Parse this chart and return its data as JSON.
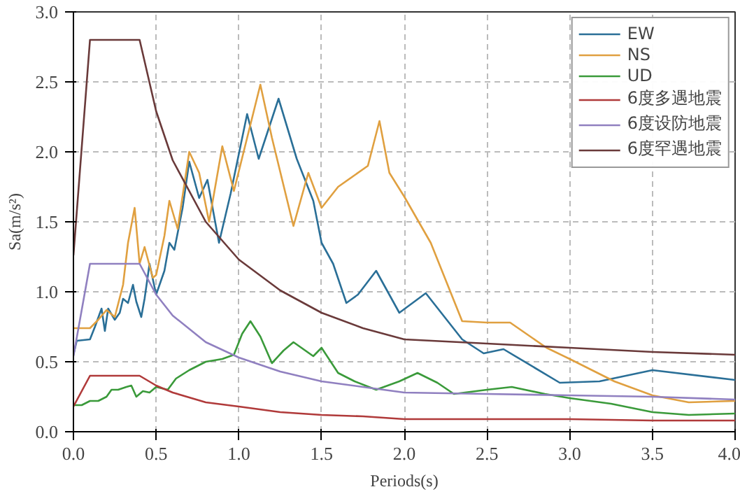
{
  "chart_data": {
    "type": "line",
    "xlabel": "Periods(s)",
    "ylabel": "Sa(m/s²)",
    "xlim": [
      0,
      4
    ],
    "ylim": [
      0,
      3
    ],
    "xticks": [
      {
        "value": 0,
        "label": "0.0"
      },
      {
        "value": 0.5,
        "label": "0.5"
      },
      {
        "value": 1,
        "label": "1.0"
      },
      {
        "value": 1.5,
        "label": "1.5"
      },
      {
        "value": 2,
        "label": "2.0"
      },
      {
        "value": 2.5,
        "label": "2.5"
      },
      {
        "value": 3,
        "label": "3.0"
      },
      {
        "value": 3.5,
        "label": "3.5"
      },
      {
        "value": 4,
        "label": "4.0"
      }
    ],
    "yticks": [
      {
        "value": 0,
        "label": "0.0"
      },
      {
        "value": 0.5,
        "label": "0.5"
      },
      {
        "value": 1,
        "label": "1.0"
      },
      {
        "value": 1.5,
        "label": "1.5"
      },
      {
        "value": 2,
        "label": "2.0"
      },
      {
        "value": 2.5,
        "label": "2.5"
      },
      {
        "value": 3,
        "label": "3.0"
      }
    ],
    "grid": true,
    "legend": "top right",
    "line_style": "solid",
    "series": [
      {
        "name": "EW",
        "color": "#2a6f97",
        "x": [
          0,
          0.02,
          0.1,
          0.13,
          0.17,
          0.19,
          0.21,
          0.25,
          0.28,
          0.3,
          0.33,
          0.36,
          0.38,
          0.41,
          0.43,
          0.46,
          0.5,
          0.55,
          0.58,
          0.61,
          0.66,
          0.7,
          0.76,
          0.81,
          0.88,
          0.95,
          1.05,
          1.12,
          1.24,
          1.35,
          1.45,
          1.5,
          1.57,
          1.65,
          1.72,
          1.83,
          1.97,
          2.13,
          2.35,
          2.48,
          2.6,
          2.94,
          3.18,
          3.5,
          4.0
        ],
        "values": [
          0.55,
          0.65,
          0.66,
          0.75,
          0.88,
          0.72,
          0.88,
          0.8,
          0.85,
          0.95,
          0.92,
          1.05,
          0.93,
          0.82,
          0.95,
          1.2,
          0.98,
          1.15,
          1.35,
          1.3,
          1.6,
          1.93,
          1.67,
          1.8,
          1.35,
          1.7,
          2.27,
          1.95,
          2.38,
          1.95,
          1.65,
          1.35,
          1.2,
          0.92,
          0.98,
          1.15,
          0.85,
          0.99,
          0.66,
          0.56,
          0.59,
          0.35,
          0.36,
          0.44,
          0.37
        ]
      },
      {
        "name": "NS",
        "color": "#e0a040",
        "x": [
          0,
          0.1,
          0.15,
          0.2,
          0.25,
          0.3,
          0.33,
          0.37,
          0.4,
          0.43,
          0.48,
          0.5,
          0.55,
          0.58,
          0.63,
          0.7,
          0.76,
          0.82,
          0.9,
          0.97,
          1.05,
          1.13,
          1.2,
          1.33,
          1.42,
          1.5,
          1.6,
          1.78,
          1.85,
          1.91,
          2.0,
          2.16,
          2.35,
          2.5,
          2.64,
          2.86,
          3.0,
          3.27,
          3.5,
          3.72,
          4.0
        ],
        "values": [
          0.74,
          0.74,
          0.8,
          0.87,
          0.82,
          1.05,
          1.35,
          1.6,
          1.2,
          1.32,
          1.1,
          1.12,
          1.4,
          1.65,
          1.45,
          2.0,
          1.85,
          1.5,
          2.04,
          1.72,
          2.1,
          2.48,
          2.1,
          1.47,
          1.85,
          1.6,
          1.75,
          1.9,
          2.22,
          1.85,
          1.68,
          1.35,
          0.79,
          0.78,
          0.78,
          0.6,
          0.52,
          0.36,
          0.26,
          0.21,
          0.22
        ]
      },
      {
        "name": "UD",
        "color": "#3a9a3a",
        "x": [
          0,
          0.05,
          0.1,
          0.15,
          0.2,
          0.23,
          0.27,
          0.32,
          0.35,
          0.38,
          0.42,
          0.46,
          0.5,
          0.57,
          0.62,
          0.7,
          0.8,
          0.9,
          0.97,
          1.02,
          1.07,
          1.13,
          1.2,
          1.27,
          1.33,
          1.45,
          1.5,
          1.6,
          1.7,
          1.83,
          1.97,
          2.08,
          2.2,
          2.3,
          2.5,
          2.65,
          2.85,
          3.0,
          3.25,
          3.5,
          3.72,
          4.0
        ],
        "values": [
          0.19,
          0.19,
          0.22,
          0.22,
          0.25,
          0.3,
          0.3,
          0.32,
          0.33,
          0.25,
          0.29,
          0.28,
          0.32,
          0.3,
          0.38,
          0.44,
          0.5,
          0.52,
          0.55,
          0.7,
          0.79,
          0.68,
          0.49,
          0.58,
          0.64,
          0.54,
          0.6,
          0.42,
          0.36,
          0.3,
          0.36,
          0.42,
          0.35,
          0.27,
          0.3,
          0.32,
          0.27,
          0.24,
          0.2,
          0.14,
          0.12,
          0.13
        ]
      },
      {
        "name": "6度多遇地震",
        "color": "#b03a3a",
        "x": [
          0,
          0.1,
          0.4,
          0.5,
          0.6,
          0.8,
          1.0,
          1.25,
          1.5,
          1.75,
          2.0,
          2.5,
          3.0,
          3.5,
          4.0
        ],
        "values": [
          0.18,
          0.4,
          0.4,
          0.33,
          0.28,
          0.21,
          0.18,
          0.14,
          0.12,
          0.11,
          0.09,
          0.09,
          0.09,
          0.08,
          0.08
        ]
      },
      {
        "name": "6度设防地震",
        "color": "#9080c0",
        "x": [
          0,
          0.1,
          0.4,
          0.5,
          0.6,
          0.8,
          1.0,
          1.25,
          1.5,
          1.75,
          2.0,
          2.5,
          3.0,
          3.5,
          4.0
        ],
        "values": [
          0.54,
          1.2,
          1.2,
          0.98,
          0.83,
          0.64,
          0.53,
          0.43,
          0.36,
          0.32,
          0.28,
          0.27,
          0.26,
          0.25,
          0.23
        ]
      },
      {
        "name": "6度罕遇地震",
        "color": "#6a3a3a",
        "x": [
          0,
          0.1,
          0.4,
          0.5,
          0.6,
          0.8,
          1.0,
          1.25,
          1.5,
          1.75,
          2.0,
          2.5,
          3.0,
          3.5,
          4.0
        ],
        "values": [
          1.26,
          2.8,
          2.8,
          2.29,
          1.94,
          1.5,
          1.23,
          1.01,
          0.85,
          0.74,
          0.66,
          0.63,
          0.6,
          0.57,
          0.55
        ]
      }
    ]
  }
}
